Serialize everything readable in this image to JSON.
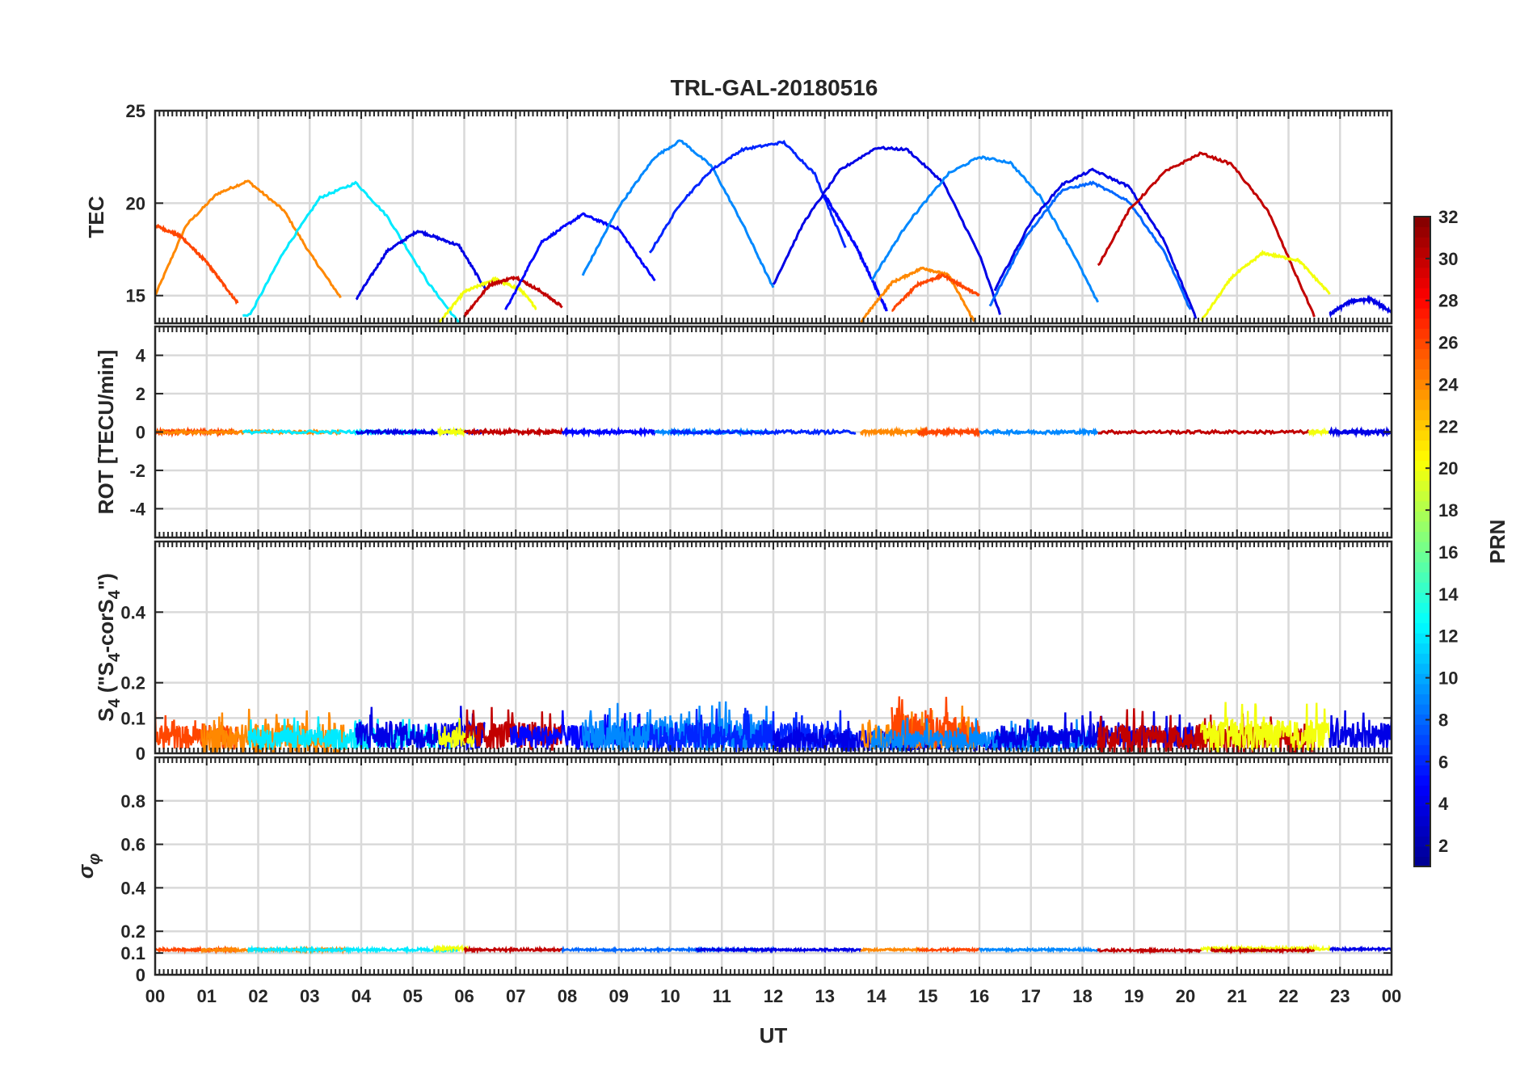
{
  "chart_data": {
    "type": "line",
    "title": "TRL-GAL-20180516",
    "xlabel": "UT",
    "xlim": [
      0,
      24
    ],
    "x_tick_labels": [
      "00",
      "01",
      "02",
      "03",
      "04",
      "05",
      "06",
      "07",
      "08",
      "09",
      "10",
      "11",
      "12",
      "13",
      "14",
      "15",
      "16",
      "17",
      "18",
      "19",
      "20",
      "21",
      "22",
      "23",
      "00"
    ],
    "grid": true,
    "colormap": "jet",
    "colorbar": {
      "label": "PRN",
      "range": [
        1,
        32
      ],
      "ticks": [
        2,
        4,
        6,
        8,
        10,
        12,
        14,
        16,
        18,
        20,
        22,
        24,
        26,
        28,
        30,
        32
      ],
      "position": "right"
    },
    "panels": [
      {
        "id": "tec",
        "ylabel": "TEC",
        "ylim": [
          13.5,
          25
        ],
        "yticks": [
          15,
          20,
          25
        ],
        "ytick_labels": [
          "15",
          "20",
          "25"
        ],
        "series": [
          {
            "prn": 24,
            "x": [
              0.0,
              0.6,
              1.2,
              1.8,
              2.5,
              3.0,
              3.6
            ],
            "y": [
              15.0,
              18.8,
              20.5,
              21.2,
              19.6,
              17.3,
              14.9
            ]
          },
          {
            "prn": 26,
            "x": [
              0.0,
              0.5,
              1.0,
              1.6
            ],
            "y": [
              18.8,
              18.2,
              16.8,
              14.6
            ]
          },
          {
            "prn": 12,
            "x": [
              1.7,
              1.85,
              2.5,
              3.2,
              3.9,
              4.5,
              5.3,
              5.9
            ],
            "y": [
              13.9,
              14.0,
              17.4,
              20.3,
              21.1,
              19.3,
              15.7,
              13.5
            ]
          },
          {
            "prn": 4,
            "x": [
              3.9,
              4.5,
              5.1,
              5.9,
              6.4
            ],
            "y": [
              14.8,
              17.4,
              18.5,
              17.7,
              15.4
            ]
          },
          {
            "prn": 20,
            "x": [
              5.5,
              6.0,
              6.6,
              7.1,
              7.4
            ],
            "y": [
              13.5,
              15.2,
              15.9,
              15.3,
              14.3
            ]
          },
          {
            "prn": 30,
            "x": [
              6.0,
              6.5,
              7.0,
              7.5,
              7.9
            ],
            "y": [
              13.9,
              15.6,
              16.0,
              15.2,
              14.4
            ]
          },
          {
            "prn": 5,
            "x": [
              6.8,
              7.5,
              8.3,
              9.0,
              9.7
            ],
            "y": [
              14.2,
              17.9,
              19.4,
              18.6,
              15.8
            ]
          },
          {
            "prn": 9,
            "x": [
              8.3,
              9.0,
              9.7,
              10.2,
              10.8,
              11.4,
              12.0
            ],
            "y": [
              16.1,
              19.8,
              22.5,
              23.4,
              22.0,
              18.9,
              15.4
            ]
          },
          {
            "prn": 6,
            "x": [
              9.6,
              10.2,
              10.8,
              11.4,
              12.2,
              12.8,
              13.4
            ],
            "y": [
              17.3,
              20.0,
              21.8,
              22.9,
              23.3,
              21.6,
              17.6
            ]
          },
          {
            "prn": 4,
            "x": [
              12.0,
              12.6,
              13.3,
              14.0,
              14.6,
              15.3,
              16.0,
              16.4
            ],
            "y": [
              15.6,
              19.0,
              21.8,
              23.0,
              22.9,
              21.1,
              17.2,
              14.0
            ]
          },
          {
            "prn": 5,
            "x": [
              13.0,
              13.6,
              14.2
            ],
            "y": [
              20.4,
              17.7,
              14.2
            ]
          },
          {
            "prn": 9,
            "x": [
              13.9,
              14.6,
              15.4,
              16.0,
              16.6,
              17.2,
              17.8,
              18.3
            ],
            "y": [
              15.8,
              18.9,
              21.6,
              22.5,
              22.2,
              20.3,
              17.4,
              14.6
            ]
          },
          {
            "prn": 24,
            "x": [
              13.7,
              14.3,
              14.9,
              15.4,
              15.9
            ],
            "y": [
              13.6,
              15.7,
              16.5,
              16.1,
              13.6
            ]
          },
          {
            "prn": 26,
            "x": [
              14.3,
              14.8,
              15.3,
              15.8,
              16.0
            ],
            "y": [
              14.2,
              15.6,
              16.1,
              15.3,
              15.0
            ]
          },
          {
            "prn": 8,
            "x": [
              16.2,
              16.9,
              17.6,
              18.2,
              18.9,
              19.6,
              20.1
            ],
            "y": [
              14.4,
              18.2,
              20.7,
              21.1,
              20.1,
              17.3,
              14.2
            ]
          },
          {
            "prn": 4,
            "x": [
              16.3,
              17.0,
              17.6,
              18.2,
              18.9,
              19.6,
              20.2
            ],
            "y": [
              15.3,
              19.0,
              21.0,
              21.8,
              20.9,
              17.9,
              13.8
            ]
          },
          {
            "prn": 30,
            "x": [
              18.3,
              18.9,
              19.6,
              20.3,
              20.9,
              21.6,
              22.1,
              22.5
            ],
            "y": [
              16.6,
              19.6,
              21.7,
              22.7,
              22.1,
              19.6,
              16.4,
              13.9
            ]
          },
          {
            "prn": 20,
            "x": [
              20.3,
              20.9,
              21.5,
              22.2,
              22.8
            ],
            "y": [
              13.6,
              16.0,
              17.3,
              16.9,
              15.1
            ]
          },
          {
            "prn": 4,
            "x": [
              22.8,
              23.2,
              23.6,
              24.0
            ],
            "y": [
              14.0,
              14.7,
              14.8,
              14.1
            ]
          }
        ]
      },
      {
        "id": "rot",
        "ylabel": "ROT [TECU/min]",
        "ylim": [
          -5.5,
          5.5
        ],
        "yticks": [
          -4,
          -2,
          0,
          2,
          4
        ],
        "ytick_labels": [
          "-4",
          "-2",
          "0",
          "2",
          "4"
        ],
        "series": [
          {
            "prn": 26,
            "x": [
              0.0,
              1.6
            ],
            "y": [
              0.0,
              0.0
            ]
          },
          {
            "prn": 24,
            "x": [
              0.0,
              3.6
            ],
            "y": [
              0.0,
              0.0
            ]
          },
          {
            "prn": 12,
            "x": [
              1.7,
              5.9
            ],
            "y": [
              0.0,
              0.0
            ]
          },
          {
            "prn": 4,
            "x": [
              3.9,
              6.4
            ],
            "y": [
              0.0,
              0.0
            ]
          },
          {
            "prn": 20,
            "x": [
              5.5,
              6.0
            ],
            "y": [
              0.0,
              0.0
            ]
          },
          {
            "prn": 30,
            "x": [
              6.0,
              7.9
            ],
            "y": [
              0.0,
              0.0
            ]
          },
          {
            "prn": 5,
            "x": [
              7.9,
              9.7
            ],
            "y": [
              0.0,
              0.0
            ]
          },
          {
            "prn": 9,
            "x": [
              9.7,
              12.0
            ],
            "y": [
              0.0,
              0.0
            ]
          },
          {
            "prn": 6,
            "x": [
              10.0,
              13.6
            ],
            "y": [
              0.0,
              0.0
            ]
          },
          {
            "prn": 24,
            "x": [
              13.7,
              15.0
            ],
            "y": [
              0.0,
              0.0
            ]
          },
          {
            "prn": 26,
            "x": [
              14.8,
              16.0
            ],
            "y": [
              0.0,
              0.0
            ]
          },
          {
            "prn": 9,
            "x": [
              16.0,
              18.3
            ],
            "y": [
              0.0,
              0.0
            ]
          },
          {
            "prn": 30,
            "x": [
              18.3,
              22.5
            ],
            "y": [
              0.0,
              0.0
            ]
          },
          {
            "prn": 20,
            "x": [
              22.4,
              22.8
            ],
            "y": [
              0.0,
              0.0
            ]
          },
          {
            "prn": 4,
            "x": [
              22.8,
              24.0
            ],
            "y": [
              0.0,
              0.0
            ]
          }
        ]
      },
      {
        "id": "s4",
        "ylabel": "S",
        "ylabel_sub": "4",
        "ylabel_rest": " (\"S",
        "ylabel_sub2": "4",
        "ylabel_rest2": "-corS",
        "ylabel_sub3": "4",
        "ylabel_rest3": "\")",
        "ylim": [
          0,
          0.6
        ],
        "yticks": [
          0,
          0.1,
          0.2,
          0.4
        ],
        "ytick_labels": [
          "0",
          "0.1",
          "0.2",
          "0.4"
        ],
        "noise_bands": [
          {
            "prn": 26,
            "x0": 0.0,
            "x1": 1.6,
            "base": 0.045,
            "amp": 0.035
          },
          {
            "prn": 24,
            "x0": 0.9,
            "x1": 3.7,
            "base": 0.04,
            "amp": 0.045
          },
          {
            "prn": 12,
            "x0": 1.8,
            "x1": 5.9,
            "base": 0.04,
            "amp": 0.03
          },
          {
            "prn": 4,
            "x0": 3.9,
            "x1": 6.4,
            "base": 0.05,
            "amp": 0.04
          },
          {
            "prn": 20,
            "x0": 5.5,
            "x1": 6.2,
            "base": 0.045,
            "amp": 0.03
          },
          {
            "prn": 30,
            "x0": 6.0,
            "x1": 7.9,
            "base": 0.05,
            "amp": 0.04
          },
          {
            "prn": 5,
            "x0": 6.9,
            "x1": 9.7,
            "base": 0.045,
            "amp": 0.035
          },
          {
            "prn": 9,
            "x0": 8.3,
            "x1": 12.0,
            "base": 0.05,
            "amp": 0.045
          },
          {
            "prn": 6,
            "x0": 9.6,
            "x1": 13.6,
            "base": 0.045,
            "amp": 0.04
          },
          {
            "prn": 4,
            "x0": 12.0,
            "x1": 16.4,
            "base": 0.035,
            "amp": 0.03
          },
          {
            "prn": 24,
            "x0": 13.7,
            "x1": 15.9,
            "base": 0.05,
            "amp": 0.04
          },
          {
            "prn": 26,
            "x0": 14.3,
            "x1": 16.0,
            "base": 0.06,
            "amp": 0.05
          },
          {
            "prn": 9,
            "x0": 13.9,
            "x1": 18.3,
            "base": 0.035,
            "amp": 0.03
          },
          {
            "prn": 4,
            "x0": 16.3,
            "x1": 20.2,
            "base": 0.045,
            "amp": 0.035
          },
          {
            "prn": 30,
            "x0": 18.3,
            "x1": 22.5,
            "base": 0.04,
            "amp": 0.04
          },
          {
            "prn": 20,
            "x0": 20.3,
            "x1": 22.8,
            "base": 0.05,
            "amp": 0.045
          },
          {
            "prn": 4,
            "x0": 22.8,
            "x1": 24.0,
            "base": 0.05,
            "amp": 0.035
          }
        ]
      },
      {
        "id": "sigma",
        "ylabel": "σ",
        "ylabel_sub": "φ",
        "ylim": [
          0,
          1.0
        ],
        "yticks": [
          0,
          0.1,
          0.2,
          0.4,
          0.6,
          0.8
        ],
        "ytick_labels": [
          "0",
          "0.1",
          "0.2",
          "0.4",
          "0.6",
          "0.8"
        ],
        "noise_bands": [
          {
            "prn": 26,
            "x0": 0.0,
            "x1": 1.6,
            "base": 0.115,
            "amp": 0.006
          },
          {
            "prn": 24,
            "x0": 0.9,
            "x1": 3.7,
            "base": 0.115,
            "amp": 0.006
          },
          {
            "prn": 12,
            "x0": 1.8,
            "x1": 5.9,
            "base": 0.115,
            "amp": 0.006
          },
          {
            "prn": 20,
            "x0": 5.4,
            "x1": 6.1,
            "base": 0.12,
            "amp": 0.008
          },
          {
            "prn": 30,
            "x0": 6.0,
            "x1": 7.9,
            "base": 0.115,
            "amp": 0.006
          },
          {
            "prn": 8,
            "x0": 7.9,
            "x1": 12.0,
            "base": 0.115,
            "amp": 0.005
          },
          {
            "prn": 4,
            "x0": 10.5,
            "x1": 13.7,
            "base": 0.115,
            "amp": 0.005
          },
          {
            "prn": 24,
            "x0": 13.7,
            "x1": 15.0,
            "base": 0.115,
            "amp": 0.005
          },
          {
            "prn": 26,
            "x0": 14.8,
            "x1": 16.0,
            "base": 0.115,
            "amp": 0.005
          },
          {
            "prn": 9,
            "x0": 16.0,
            "x1": 18.3,
            "base": 0.115,
            "amp": 0.005
          },
          {
            "prn": 30,
            "x0": 18.3,
            "x1": 20.3,
            "base": 0.112,
            "amp": 0.005
          },
          {
            "prn": 20,
            "x0": 20.3,
            "x1": 22.8,
            "base": 0.12,
            "amp": 0.007
          },
          {
            "prn": 30,
            "x0": 20.5,
            "x1": 22.5,
            "base": 0.112,
            "amp": 0.005
          },
          {
            "prn": 4,
            "x0": 22.8,
            "x1": 24.0,
            "base": 0.118,
            "amp": 0.005
          }
        ]
      }
    ]
  }
}
